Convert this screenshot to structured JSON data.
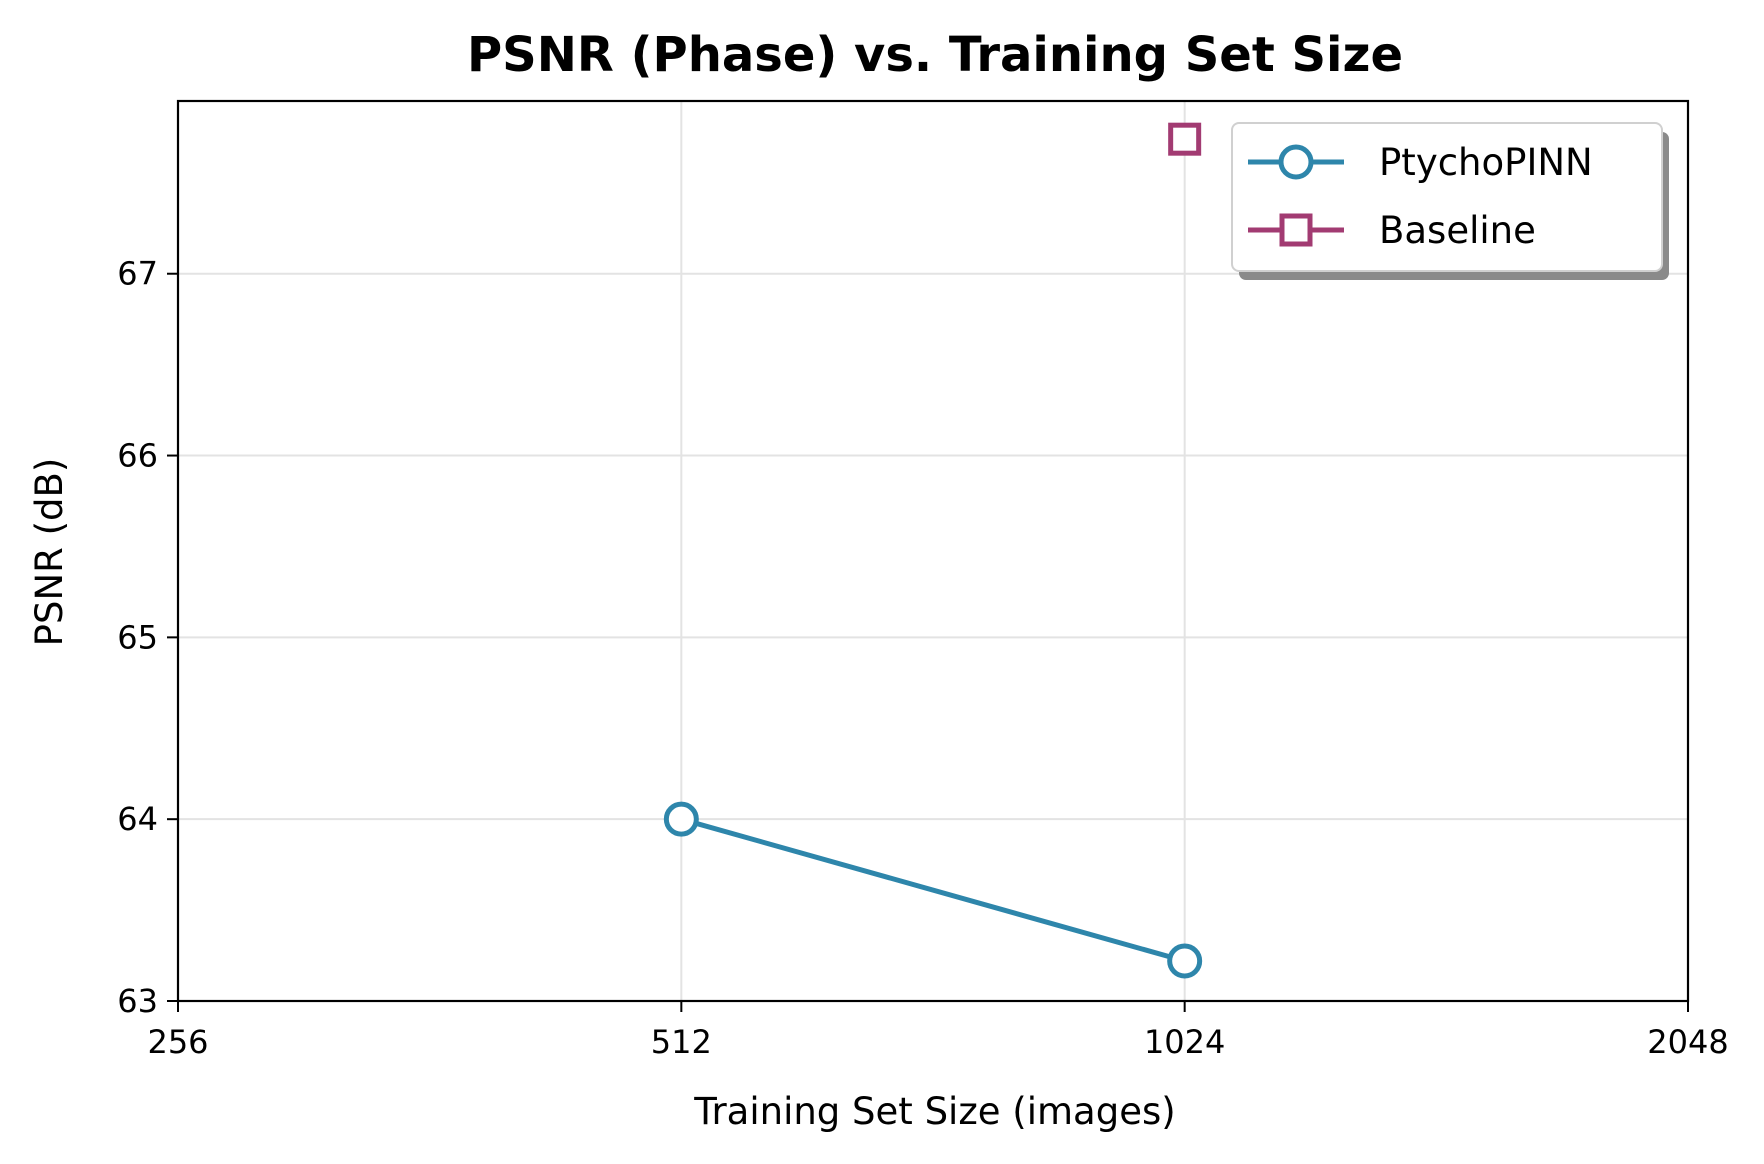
{
  "chart_data": {
    "type": "line",
    "title": "PSNR (Phase) vs. Training Set Size",
    "xlabel": "Training Set Size (images)",
    "ylabel": "PSNR (dB)",
    "x_scale": "log2",
    "xlim": [
      256,
      2048
    ],
    "ylim": [
      63,
      67.95
    ],
    "x_ticks": [
      256,
      512,
      1024,
      2048
    ],
    "x_tick_labels": [
      "256",
      "512",
      "1024",
      "2048"
    ],
    "y_ticks": [
      63,
      64,
      65,
      66,
      67
    ],
    "y_tick_labels": [
      "63",
      "64",
      "65",
      "66",
      "67"
    ],
    "grid": true,
    "legend_position": "top-right",
    "series": [
      {
        "name": "PtychoPINN",
        "color": "#2e86ab",
        "marker": "circle",
        "x": [
          512,
          1024
        ],
        "y": [
          64.0,
          63.22
        ]
      },
      {
        "name": "Baseline",
        "color": "#a23b72",
        "marker": "square",
        "x": [
          1024
        ],
        "y": [
          67.74
        ]
      }
    ]
  }
}
